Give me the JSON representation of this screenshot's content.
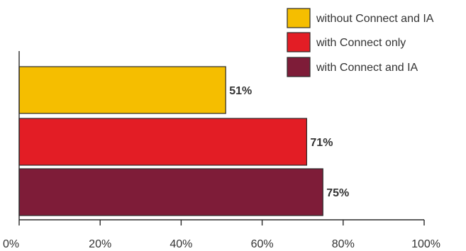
{
  "chart_data": {
    "type": "bar",
    "orientation": "horizontal",
    "series": [
      {
        "name": "without Connect and IA",
        "values": [
          51
        ],
        "label": "51%",
        "color": "#f5be00"
      },
      {
        "name": "with Connect only",
        "values": [
          71
        ],
        "label": "71%",
        "color": "#e31d25"
      },
      {
        "name": "with Connect and IA",
        "values": [
          75
        ],
        "label": "75%",
        "color": "#7e1c38"
      }
    ],
    "xlim": [
      0,
      100
    ],
    "x_ticks": [
      0,
      20,
      40,
      60,
      80,
      100
    ],
    "x_tick_labels": [
      "0%",
      "20%",
      "40%",
      "60%",
      "80%",
      "100%"
    ],
    "grid": false,
    "legend_position": "top-right"
  }
}
